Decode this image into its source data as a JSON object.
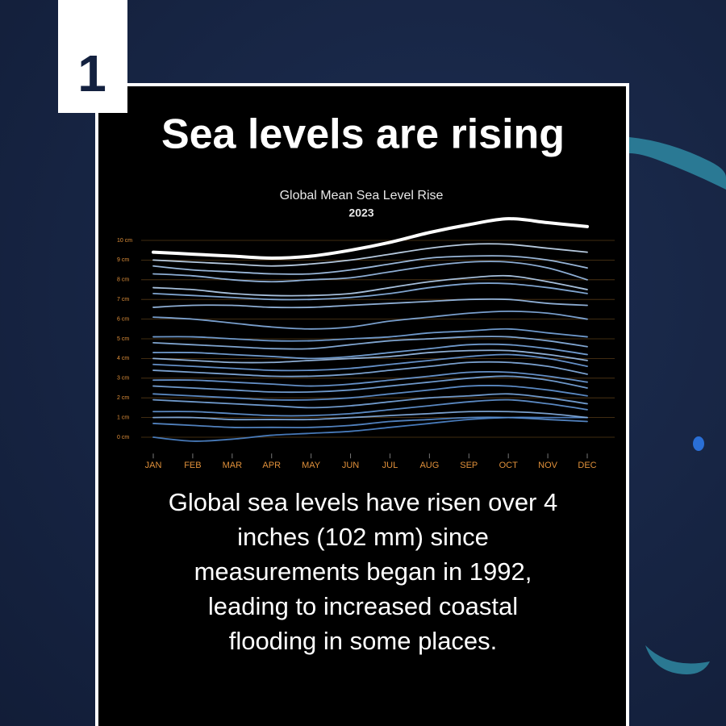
{
  "badge": "1",
  "headline": "Sea levels are rising",
  "chart_data": {
    "type": "line",
    "title": "Global Mean Sea Level Rise",
    "subtitle": "2023",
    "categories": [
      "JAN",
      "FEB",
      "MAR",
      "APR",
      "MAY",
      "JUN",
      "JUL",
      "AUG",
      "SEP",
      "OCT",
      "NOV",
      "DEC"
    ],
    "ylim": [
      -0.5,
      10.5
    ],
    "yticks": [
      {
        "value": 0,
        "label": "0 cm"
      },
      {
        "value": 1,
        "label": "1 cm"
      },
      {
        "value": 2,
        "label": "2 cm"
      },
      {
        "value": 3,
        "label": "3 cm"
      },
      {
        "value": 4,
        "label": "4 cm"
      },
      {
        "value": 5,
        "label": "5 cm"
      },
      {
        "value": 6,
        "label": "6 cm"
      },
      {
        "value": 7,
        "label": "7 cm"
      },
      {
        "value": 8,
        "label": "8 cm"
      },
      {
        "value": 9,
        "label": "9 cm"
      },
      {
        "value": 10,
        "label": "10 cm"
      }
    ],
    "grid": true,
    "series": [
      {
        "color": "#ffffff",
        "values": [
          9.4,
          9.3,
          9.2,
          9.1,
          9.2,
          9.5,
          9.9,
          10.4,
          10.8,
          11.1,
          10.9,
          10.7
        ]
      },
      {
        "color": "#c9def5",
        "values": [
          9.0,
          8.9,
          8.8,
          8.7,
          8.8,
          9.0,
          9.3,
          9.6,
          9.8,
          9.8,
          9.6,
          9.4
        ]
      },
      {
        "color": "#a9c9ee",
        "values": [
          8.7,
          8.5,
          8.4,
          8.3,
          8.3,
          8.5,
          8.8,
          9.1,
          9.2,
          9.2,
          9.0,
          8.6
        ]
      },
      {
        "color": "#9cc0ea",
        "values": [
          8.3,
          8.2,
          8.0,
          7.9,
          8.0,
          8.1,
          8.4,
          8.7,
          8.9,
          8.9,
          8.6,
          8.0
        ]
      },
      {
        "color": "#b7d3f2",
        "values": [
          7.6,
          7.5,
          7.3,
          7.2,
          7.2,
          7.3,
          7.6,
          7.9,
          8.1,
          8.2,
          7.9,
          7.5
        ]
      },
      {
        "color": "#8db6e6",
        "values": [
          7.3,
          7.2,
          7.1,
          7.0,
          7.0,
          7.1,
          7.3,
          7.6,
          7.8,
          7.8,
          7.6,
          7.3
        ]
      },
      {
        "color": "#9cc0ea",
        "values": [
          6.6,
          6.7,
          6.7,
          6.6,
          6.6,
          6.7,
          6.8,
          6.9,
          7.0,
          7.0,
          6.8,
          6.7
        ]
      },
      {
        "color": "#86b0e3",
        "values": [
          6.1,
          6.0,
          5.8,
          5.6,
          5.5,
          5.6,
          5.9,
          6.1,
          6.3,
          6.4,
          6.3,
          6.0
        ]
      },
      {
        "color": "#7aa8e0",
        "values": [
          5.1,
          5.1,
          5.0,
          4.9,
          4.9,
          5.0,
          5.1,
          5.3,
          5.4,
          5.5,
          5.3,
          5.1
        ]
      },
      {
        "color": "#8db6e6",
        "values": [
          4.8,
          4.7,
          4.6,
          4.5,
          4.5,
          4.7,
          4.9,
          5.0,
          5.1,
          5.1,
          4.9,
          4.6
        ]
      },
      {
        "color": "#7aa8e0",
        "values": [
          4.3,
          4.3,
          4.2,
          4.1,
          4.0,
          4.1,
          4.3,
          4.5,
          4.7,
          4.7,
          4.5,
          4.2
        ]
      },
      {
        "color": "#9cc0ea",
        "values": [
          4.0,
          3.9,
          3.8,
          3.8,
          3.9,
          4.0,
          4.1,
          4.3,
          4.4,
          4.4,
          4.2,
          3.9
        ]
      },
      {
        "color": "#6f9fdb",
        "values": [
          3.7,
          3.6,
          3.5,
          3.4,
          3.4,
          3.5,
          3.7,
          3.9,
          4.1,
          4.2,
          4.0,
          3.6
        ]
      },
      {
        "color": "#86b0e3",
        "values": [
          3.4,
          3.3,
          3.2,
          3.1,
          3.1,
          3.2,
          3.4,
          3.6,
          3.8,
          3.8,
          3.6,
          3.2
        ]
      },
      {
        "color": "#6f9fdb",
        "values": [
          2.9,
          2.9,
          2.8,
          2.7,
          2.6,
          2.7,
          2.9,
          3.1,
          3.3,
          3.3,
          3.1,
          2.8
        ]
      },
      {
        "color": "#7aa8e0",
        "values": [
          2.6,
          2.5,
          2.4,
          2.3,
          2.3,
          2.4,
          2.6,
          2.8,
          3.0,
          3.1,
          2.9,
          2.5
        ]
      },
      {
        "color": "#6497d6",
        "values": [
          2.2,
          2.1,
          2.0,
          1.9,
          1.9,
          2.0,
          2.2,
          2.4,
          2.6,
          2.6,
          2.4,
          2.1
        ]
      },
      {
        "color": "#7aa8e0",
        "values": [
          1.9,
          1.8,
          1.7,
          1.6,
          1.5,
          1.6,
          1.8,
          2.0,
          2.1,
          2.2,
          2.0,
          1.7
        ]
      },
      {
        "color": "#6497d6",
        "values": [
          1.3,
          1.3,
          1.2,
          1.1,
          1.1,
          1.2,
          1.4,
          1.6,
          1.8,
          1.9,
          1.7,
          1.4
        ]
      },
      {
        "color": "#86b0e3",
        "values": [
          1.0,
          1.0,
          0.9,
          0.9,
          0.9,
          1.0,
          1.1,
          1.2,
          1.3,
          1.3,
          1.2,
          1.0
        ]
      },
      {
        "color": "#5a8fd2",
        "values": [
          0.7,
          0.6,
          0.5,
          0.5,
          0.5,
          0.6,
          0.8,
          0.9,
          1.0,
          1.0,
          0.9,
          0.8
        ]
      },
      {
        "color": "#4f86cc",
        "values": [
          0.0,
          -0.2,
          -0.1,
          0.1,
          0.2,
          0.3,
          0.5,
          0.7,
          0.9,
          1.0,
          1.0,
          1.0
        ]
      }
    ]
  },
  "caption": [
    "Global sea levels have risen over 4",
    "inches (102 mm) since",
    "measurements began in 1992,",
    "leading to increased coastal",
    "flooding in some places."
  ]
}
